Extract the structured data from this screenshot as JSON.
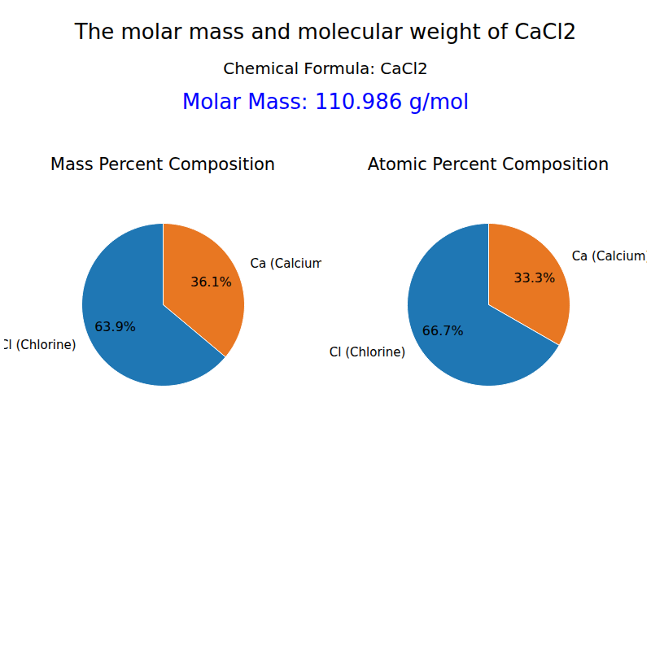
{
  "title": "The molar mass and molecular weight of CaCl2",
  "annotations": [
    {
      "text": "Chemical Formula: CaCl2"
    },
    {
      "text": "Molar Mass: 110.986 g/mol",
      "color": "#0000FF"
    }
  ],
  "chart_data": [
    {
      "type": "pie",
      "title": "Mass Percent Composition",
      "categories": [
        "Ca (Calcium)",
        "Cl (Chlorine)"
      ],
      "values": [
        36.1,
        63.9
      ],
      "value_labels": [
        "36.1%",
        "63.9%"
      ],
      "colors": [
        "#E87722",
        "#1F77B4"
      ],
      "data_labels": true
    },
    {
      "type": "pie",
      "title": "Atomic Percent Composition",
      "categories": [
        "Ca (Calcium)",
        "Cl (Chlorine)"
      ],
      "values": [
        33.3,
        66.7
      ],
      "value_labels": [
        "33.3%",
        "66.7%"
      ],
      "colors": [
        "#E87722",
        "#1F77B4"
      ],
      "data_labels": true
    }
  ]
}
